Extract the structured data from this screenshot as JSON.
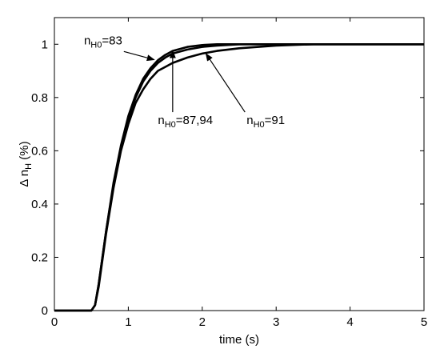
{
  "chart_data": {
    "type": "line",
    "xlabel": "time (s)",
    "ylabel_main": "Δ n",
    "ylabel_sub": "H",
    "ylabel_unit": " (%)",
    "xlim": [
      0,
      5
    ],
    "ylim": [
      0,
      1.1
    ],
    "xticks": [
      "0",
      "1",
      "2",
      "3",
      "4",
      "5"
    ],
    "yticks": [
      "0",
      "0.2",
      "0.4",
      "0.6",
      "0.8",
      "1"
    ],
    "grid": false,
    "series_color": "#000000",
    "series": [
      {
        "x": [
          0,
          0.5,
          0.55,
          0.6,
          0.7,
          0.8,
          0.9,
          1.0,
          1.1,
          1.2,
          1.3,
          1.4,
          1.5,
          1.6,
          1.8,
          2.0,
          2.2,
          2.5,
          3.0,
          3.5,
          4.0,
          5.0
        ],
        "y": [
          0,
          0,
          0.02,
          0.1,
          0.3,
          0.48,
          0.62,
          0.73,
          0.81,
          0.87,
          0.91,
          0.94,
          0.96,
          0.975,
          0.99,
          0.997,
          1.0,
          1.0,
          1.0,
          1.0,
          1.0,
          1.0
        ]
      },
      {
        "x": [
          0,
          0.5,
          0.55,
          0.6,
          0.7,
          0.8,
          0.9,
          1.0,
          1.1,
          1.2,
          1.3,
          1.4,
          1.5,
          1.6,
          1.8,
          2.0,
          2.2,
          2.5,
          3.0,
          3.5,
          4.0,
          5.0
        ],
        "y": [
          0,
          0,
          0.02,
          0.1,
          0.3,
          0.47,
          0.61,
          0.72,
          0.8,
          0.86,
          0.9,
          0.93,
          0.95,
          0.965,
          0.98,
          0.99,
          0.995,
          1.0,
          1.0,
          1.0,
          1.0,
          1.0
        ]
      },
      {
        "x": [
          0,
          0.5,
          0.55,
          0.6,
          0.7,
          0.8,
          0.9,
          1.0,
          1.1,
          1.2,
          1.3,
          1.4,
          1.5,
          1.6,
          1.8,
          2.0,
          2.2,
          2.5,
          3.0,
          3.5,
          4.0,
          5.0
        ],
        "y": [
          0,
          0,
          0.02,
          0.09,
          0.29,
          0.46,
          0.6,
          0.7,
          0.78,
          0.83,
          0.87,
          0.9,
          0.915,
          0.93,
          0.95,
          0.965,
          0.975,
          0.985,
          0.995,
          1.0,
          1.0,
          1.0
        ]
      }
    ],
    "annotations": [
      {
        "main": "n",
        "sub": "H0",
        "rest": "=83",
        "pointer": [
          1.35,
          0.942
        ],
        "anchor": [
          0.4,
          1.0
        ]
      },
      {
        "main": "n",
        "sub": "H0",
        "rest": "=87,94",
        "pointer": [
          1.6,
          0.975
        ],
        "anchor": [
          1.4,
          0.7
        ]
      },
      {
        "main": "n",
        "sub": "H0",
        "rest": "=91",
        "pointer": [
          2.05,
          0.965
        ],
        "anchor": [
          2.6,
          0.7
        ]
      }
    ]
  }
}
